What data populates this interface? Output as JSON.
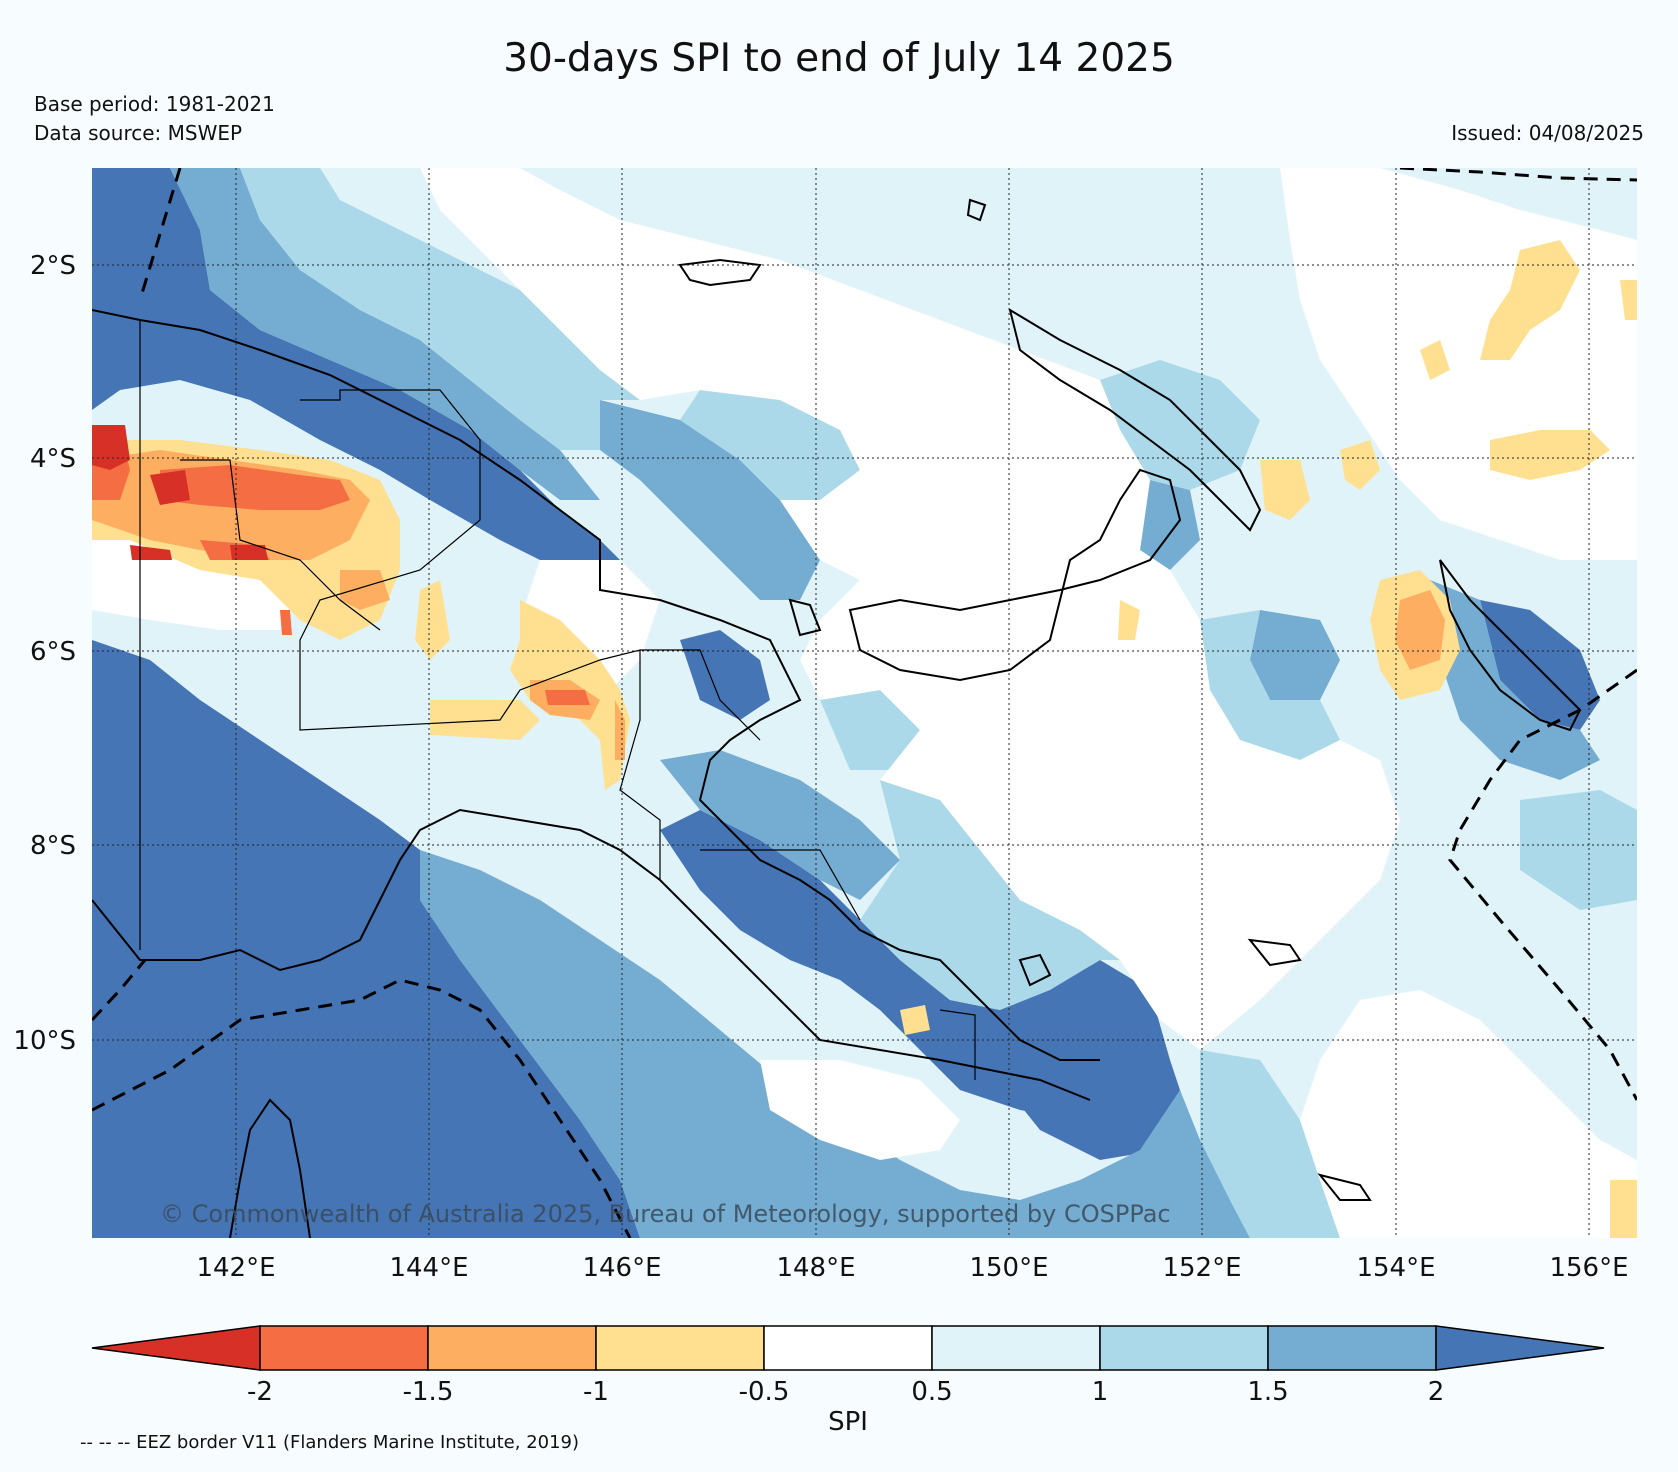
{
  "title": "30-days SPI to end of July 14 2025",
  "base_period": "Base period: 1981-2021",
  "data_source": "Data source: MSWEP",
  "issued": "Issued: 04/08/2025",
  "copyright": "© Commonwealth of Australia 2025, Bureau of Meteorology, supported by COSPPac",
  "footnote": "-- -- -- EEZ border V11 (Flanders Marine Institute, 2019)",
  "map": {
    "lon_ticks": [
      "142°E",
      "144°E",
      "146°E",
      "148°E",
      "150°E",
      "152°E",
      "154°E",
      "156°E"
    ],
    "lat_ticks": [
      "2°S",
      "4°S",
      "6°S",
      "8°S",
      "10°S"
    ]
  },
  "colorbar": {
    "label": "SPI",
    "tick_labels": [
      "-2",
      "-1.5",
      "-1",
      "-0.5",
      "0.5",
      "1",
      "1.5",
      "2"
    ],
    "colors": {
      "below_-2": "#d73027",
      "-2_-1.5": "#f46d43",
      "-1.5_-1": "#fdae61",
      "-1_-0.5": "#fee090",
      "-0.5_0.5": "#ffffff",
      "0.5_1": "#e0f3f8",
      "1_1.5": "#abd9e9",
      "1.5_2": "#74add1",
      "above_2": "#4575b4"
    }
  }
}
